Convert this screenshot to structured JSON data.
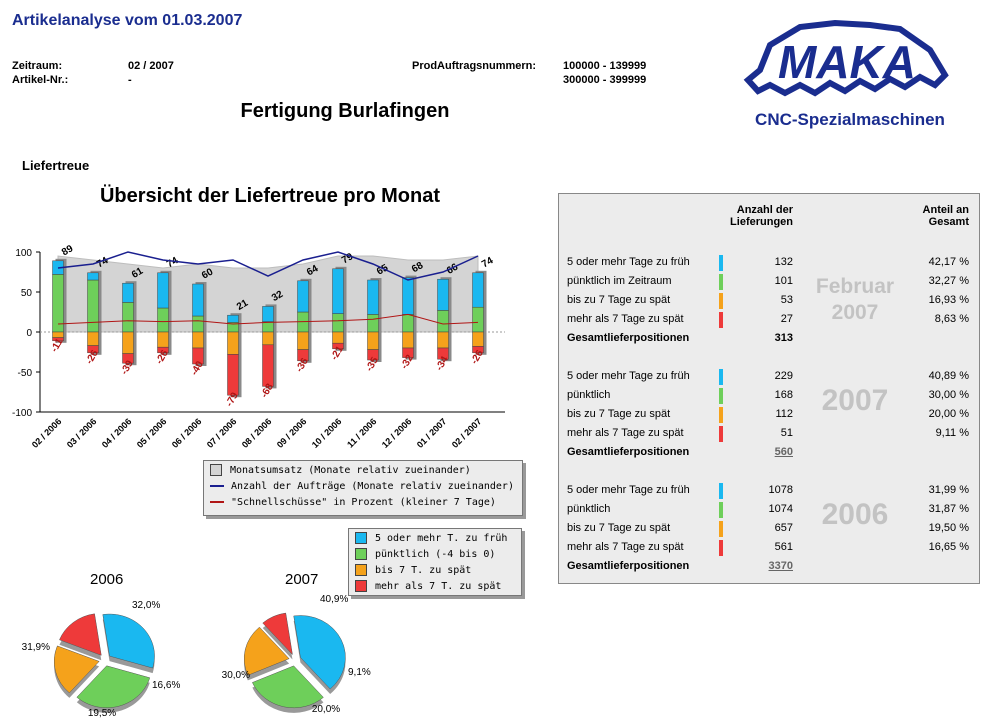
{
  "header": {
    "title": "Artikelanalyse vom 01.03.2007",
    "zeitraum_label": "Zeitraum:",
    "zeitraum_value": "02 / 2007",
    "artikel_label": "Artikel-Nr.:",
    "artikel_value": "-",
    "prod_label": "ProdAuftragsnummern:",
    "prod_value_1": "100000 - 139999",
    "prod_value_2": "300000 - 399999",
    "main_title": "Fertigung Burlafingen"
  },
  "logo": {
    "text": "MAKA",
    "subtitle": "CNC-Spezialmaschinen"
  },
  "section_label": "Liefertreue",
  "chart_data": [
    {
      "type": "bar",
      "title": "Übersicht der Liefertreue pro Monat",
      "categories": [
        "02 / 2006",
        "03 / 2006",
        "04 / 2006",
        "05 / 2006",
        "06 / 2006",
        "07 / 2006",
        "08 / 2006",
        "09 / 2006",
        "10 / 2006",
        "11 / 2006",
        "12 / 2006",
        "01 / 2007",
        "02 / 2007"
      ],
      "ylim": [
        -100,
        100
      ],
      "yticks": [
        "100",
        "50",
        "0",
        "-50",
        "-100"
      ],
      "grid": false,
      "series": [
        {
          "name": "5 oder mehr T. zu früh",
          "values": [
            17,
            9,
            24,
            44,
            40,
            9,
            19,
            39,
            56,
            43,
            46,
            39,
            43
          ]
        },
        {
          "name": "pünktlich (-4 bis 0)",
          "values": [
            72,
            65,
            37,
            30,
            20,
            12,
            13,
            25,
            23,
            22,
            22,
            27,
            31
          ]
        },
        {
          "name": "bis 7 T. zu spät",
          "values": [
            -7,
            -17,
            -27,
            -19,
            -20,
            -28,
            -16,
            -22,
            -14,
            -22,
            -20,
            -20,
            -18
          ]
        },
        {
          "name": "mehr als 7 T. zu spät",
          "values": [
            -4,
            -9,
            -12,
            -7,
            -20,
            -51,
            -52,
            -14,
            -7,
            -13,
            -12,
            -14,
            -8
          ]
        }
      ],
      "top_labels": [
        "89",
        "74",
        "61",
        "74",
        "60",
        "21",
        "32",
        "64",
        "79",
        "65",
        "68",
        "66",
        "74"
      ],
      "bottom_labels": [
        "-11",
        "-26",
        "-39",
        "-26",
        "-40",
        "-79",
        "-68",
        "-36",
        "-21",
        "-35",
        "-32",
        "-34",
        "-26"
      ],
      "area_series": {
        "name": "Monatsumsatz (Monate relativ zueinander)",
        "values": [
          95,
          90,
          85,
          80,
          85,
          80,
          80,
          85,
          95,
          95,
          90,
          90,
          95
        ]
      },
      "line_orders": {
        "name": "Anzahl der Aufträge (Monate relativ zueinander)",
        "values": [
          80,
          85,
          100,
          90,
          85,
          90,
          70,
          90,
          100,
          85,
          65,
          75,
          95
        ]
      },
      "line_early": {
        "name": "\"Schnellschüsse\" in Prozent (kleiner 7 Tage)",
        "values": [
          10,
          12,
          14,
          13,
          14,
          10,
          12,
          13,
          14,
          16,
          22,
          10,
          12
        ]
      },
      "legend_placement": "bottom-right"
    },
    {
      "type": "pie",
      "title": "2006",
      "labels": [
        "5 oder mehr T. zu früh",
        "pünktlich (-4 bis 0)",
        "bis 7 T. zu spät",
        "mehr als 7 T. zu spät"
      ],
      "values": [
        32.0,
        31.9,
        19.5,
        16.6
      ],
      "value_labels": [
        "32,0%",
        "31,9%",
        "19,5%",
        "16,6%"
      ]
    },
    {
      "type": "pie",
      "title": "2007",
      "labels": [
        "5 oder mehr T. zu früh",
        "pünktlich (-4 bis 0)",
        "bis 7 T. zu spät",
        "mehr als 7 T. zu spät"
      ],
      "values": [
        40.9,
        30.0,
        20.0,
        9.1
      ],
      "value_labels": [
        "40,9%",
        "30,0%",
        "20,0%",
        "9,1%"
      ]
    }
  ],
  "colors": {
    "early": "#1ab8f0",
    "ontime": "#6ecf5a",
    "late7": "#f5a21b",
    "late": "#ee3a3a",
    "navy": "#1a1f8f",
    "darkred": "#b01515",
    "area": "#d4d4d4"
  },
  "table": {
    "col_anzahl": "Anzahl der",
    "col_anzahl2": "Lieferungen",
    "col_anteil": "Anteil an",
    "col_anteil2": "Gesamt",
    "groups": [
      {
        "label": "Februar 2007",
        "label_1": "Februar",
        "label_2": "2007",
        "rows": [
          {
            "name": "5 oder mehr Tage zu früh",
            "count": "132",
            "pct": "42,17 %"
          },
          {
            "name": "pünktlich im Zeitraum",
            "count": "101",
            "pct": "32,27 %"
          },
          {
            "name": "bis zu 7 Tage zu spät",
            "count": "53",
            "pct": "16,93 %"
          },
          {
            "name": "mehr als 7 Tage zu spät",
            "count": "27",
            "pct": "8,63 %"
          }
        ],
        "total_label": "Gesamtlieferpositionen",
        "total": "313"
      },
      {
        "label": "2007",
        "rows": [
          {
            "name": "5 oder mehr Tage zu früh",
            "count": "229",
            "pct": "40,89 %"
          },
          {
            "name": "pünktlich",
            "count": "168",
            "pct": "30,00 %"
          },
          {
            "name": "bis zu 7 Tage zu spät",
            "count": "112",
            "pct": "20,00 %"
          },
          {
            "name": "mehr als 7 Tage zu spät",
            "count": "51",
            "pct": "9,11 %"
          }
        ],
        "total_label": "Gesamtlieferpositionen",
        "total": "560"
      },
      {
        "label": "2006",
        "rows": [
          {
            "name": "5 oder mehr Tage zu früh",
            "count": "1078",
            "pct": "31,99 %"
          },
          {
            "name": "pünktlich",
            "count": "1074",
            "pct": "31,87 %"
          },
          {
            "name": "bis zu 7 Tage zu spät",
            "count": "657",
            "pct": "19,50 %"
          },
          {
            "name": "mehr als 7 Tage zu spät",
            "count": "561",
            "pct": "16,65 %"
          }
        ],
        "total_label": "Gesamtlieferpositionen",
        "total": "3370"
      }
    ]
  }
}
